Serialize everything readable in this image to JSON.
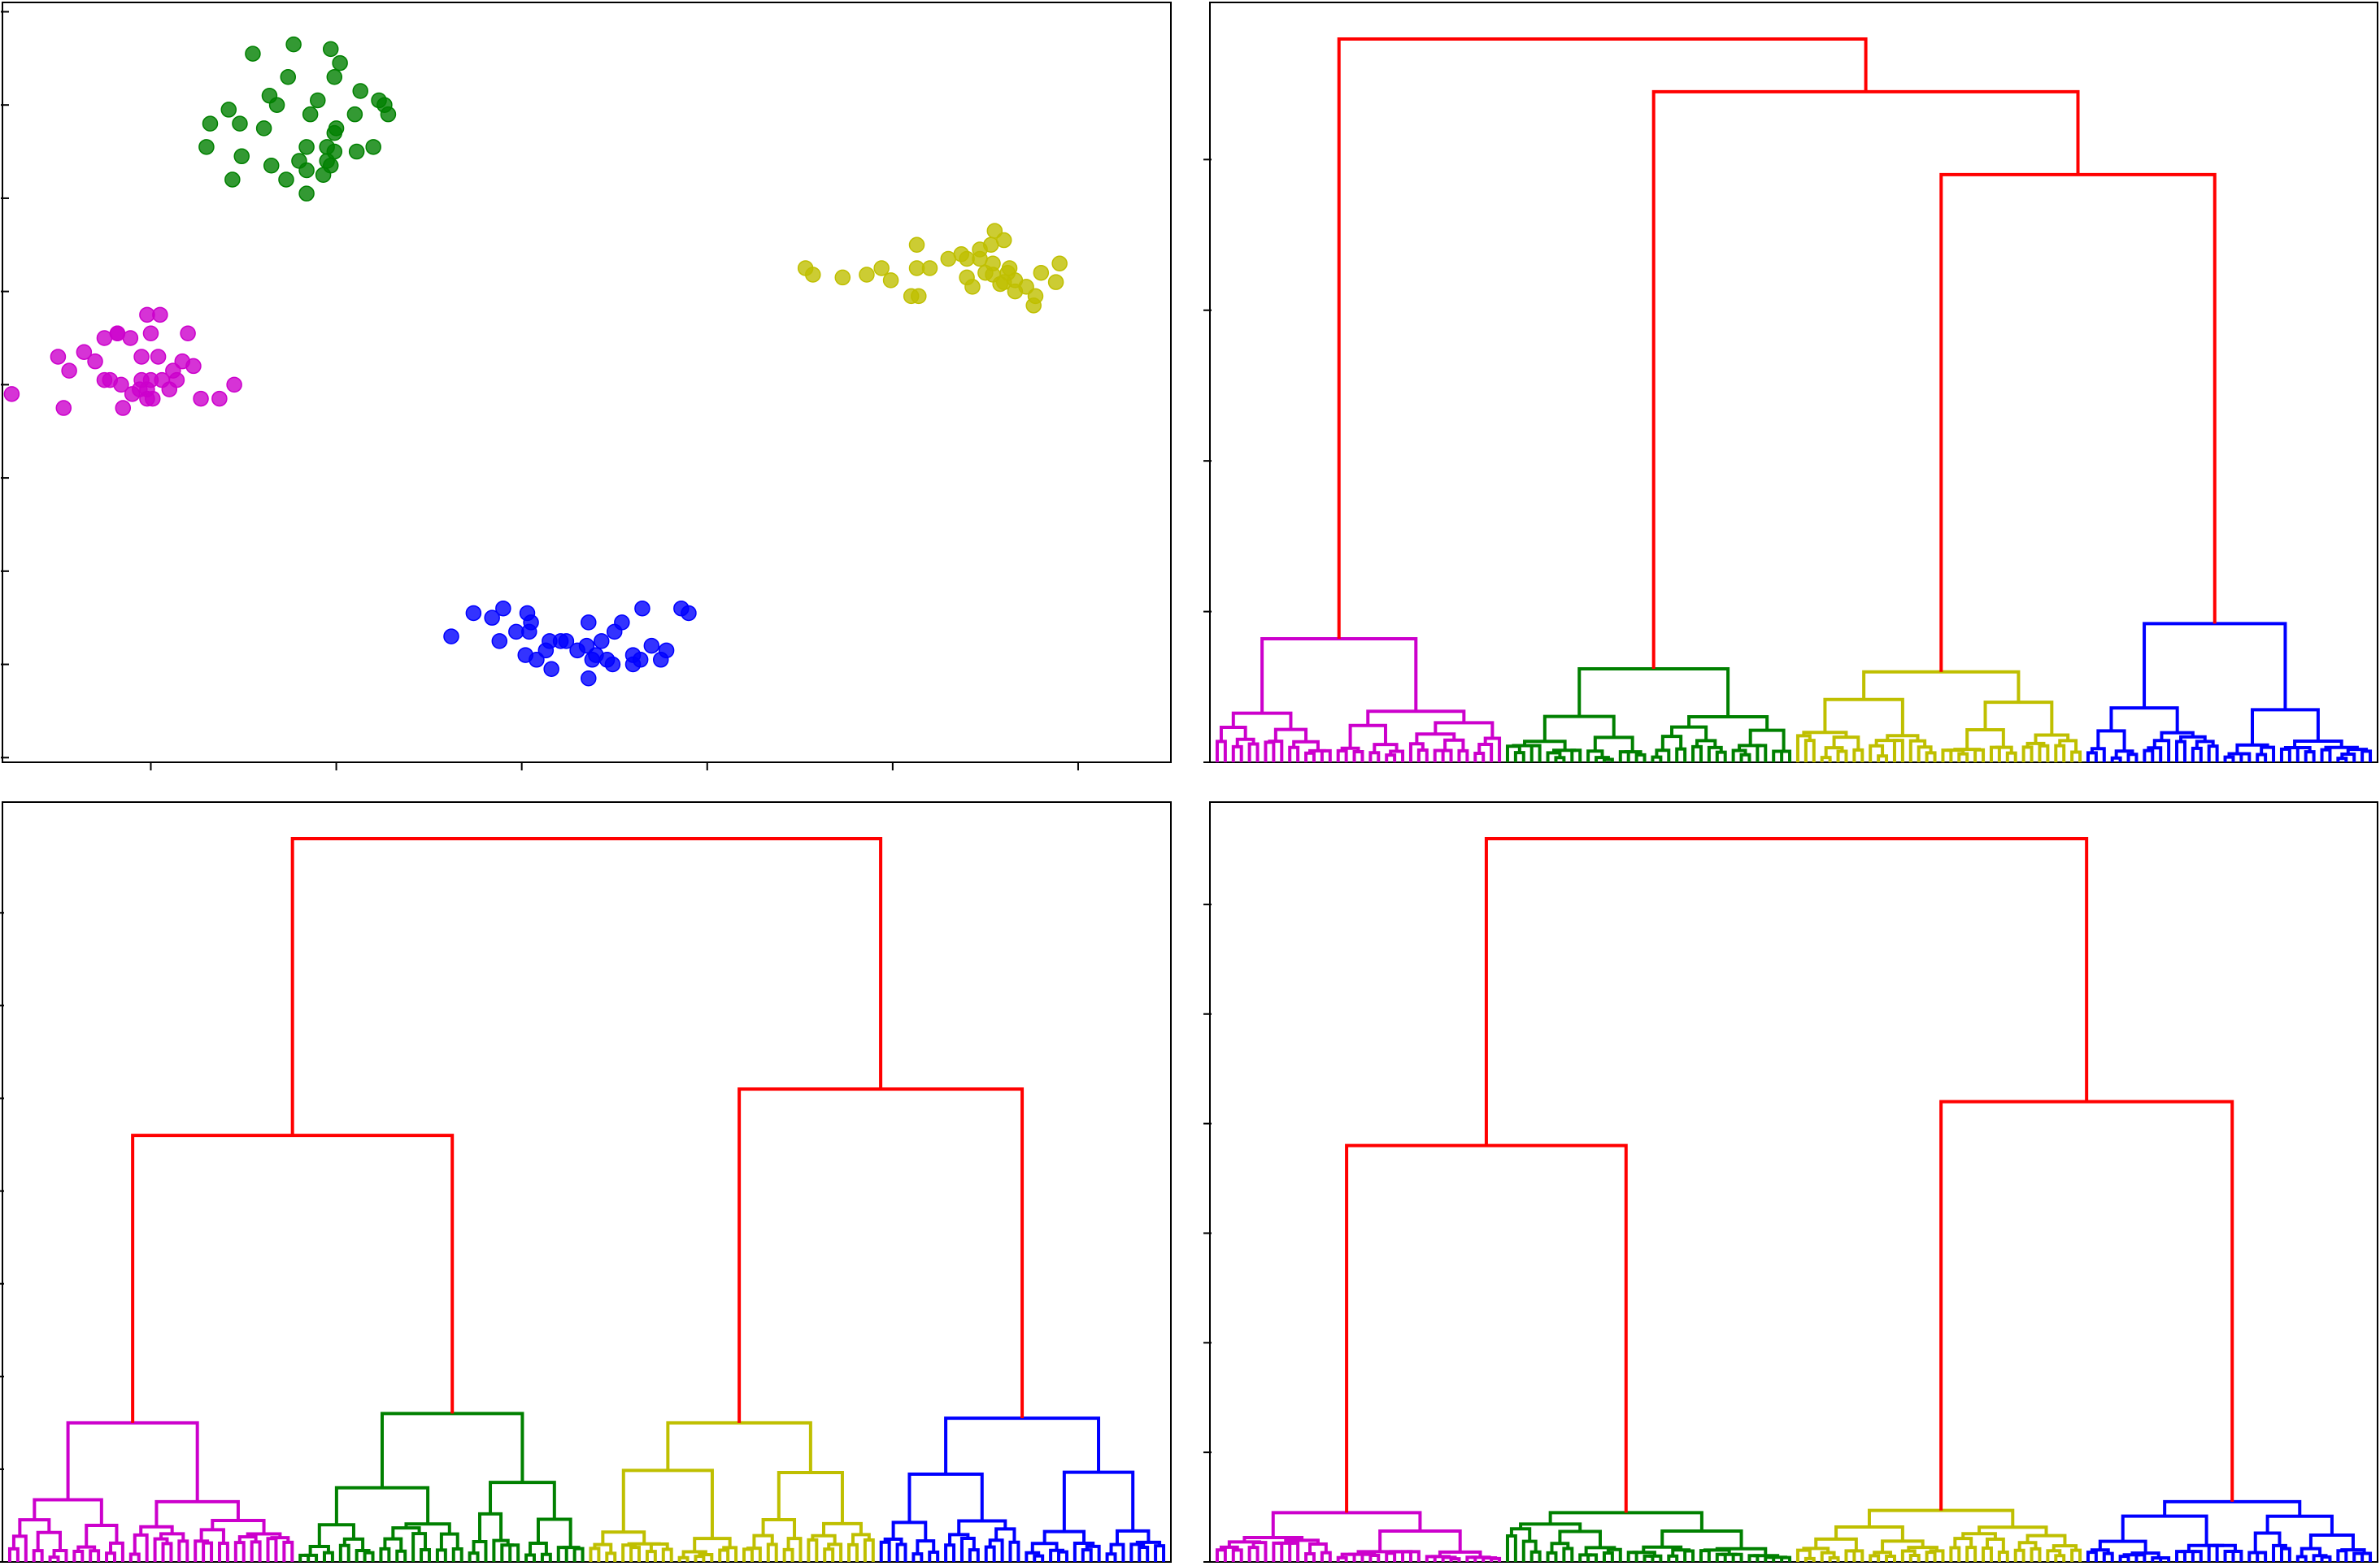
{
  "figure": {
    "colors": {
      "magenta": "#cc00cc",
      "green": "#008000",
      "yellow": "#bfbf00",
      "blue": "#0000ff",
      "top_links": "#ff0000",
      "frame": "#000000"
    }
  },
  "chart_data": [
    {
      "id": "scatter",
      "type": "scatter",
      "title": "",
      "xlabel": "",
      "ylabel": "",
      "xlim": [
        -0.8,
        5.5
      ],
      "ylim": [
        -0.05,
        8.1
      ],
      "xticks": [
        0,
        1,
        2,
        3,
        4,
        5
      ],
      "yticks": [
        0,
        1,
        2,
        3,
        4,
        5,
        6,
        7,
        8
      ],
      "grid": false,
      "legend": "none",
      "series": [
        {
          "color_key": "green",
          "points": [
            [
              0.55,
              7.55
            ],
            [
              0.77,
              7.65
            ],
            [
              0.97,
              7.6
            ],
            [
              1.02,
              7.45
            ],
            [
              0.99,
              7.3
            ],
            [
              0.74,
              7.3
            ],
            [
              0.9,
              7.05
            ],
            [
              0.64,
              7.1
            ],
            [
              0.86,
              6.9
            ],
            [
              1.13,
              7.15
            ],
            [
              1.23,
              7.05
            ],
            [
              1.26,
              7.0
            ],
            [
              1.28,
              6.9
            ],
            [
              0.48,
              6.8
            ],
            [
              0.42,
              6.95
            ],
            [
              0.95,
              6.55
            ],
            [
              0.99,
              6.5
            ],
            [
              0.65,
              6.35
            ],
            [
              0.49,
              6.45
            ],
            [
              0.97,
              6.35
            ],
            [
              0.84,
              6.3
            ],
            [
              0.68,
              7.0
            ],
            [
              1.2,
              6.55
            ],
            [
              0.32,
              6.8
            ],
            [
              1.1,
              6.9
            ],
            [
              0.84,
              6.05
            ],
            [
              0.73,
              6.2
            ],
            [
              0.84,
              6.55
            ],
            [
              0.99,
              6.7
            ],
            [
              1.0,
              6.75
            ],
            [
              0.61,
              6.75
            ],
            [
              1.11,
              6.5
            ],
            [
              0.93,
              6.25
            ],
            [
              0.44,
              6.2
            ],
            [
              0.8,
              6.4
            ],
            [
              0.3,
              6.55
            ],
            [
              0.95,
              6.4
            ]
          ]
        },
        {
          "color_key": "yellow",
          "points": [
            [
              4.55,
              5.65
            ],
            [
              4.6,
              5.55
            ],
            [
              4.47,
              5.45
            ],
            [
              4.53,
              5.5
            ],
            [
              4.37,
              5.4
            ],
            [
              4.47,
              5.35
            ],
            [
              4.54,
              5.3
            ],
            [
              4.4,
              5.35
            ],
            [
              4.4,
              5.15
            ],
            [
              4.63,
              5.25
            ],
            [
              4.8,
              5.2
            ],
            [
              4.13,
              5.25
            ],
            [
              4.6,
              5.1
            ],
            [
              4.88,
              5.1
            ],
            [
              4.72,
              5.05
            ],
            [
              4.66,
              5.0
            ],
            [
              4.5,
              5.2
            ],
            [
              4.43,
              5.05
            ],
            [
              4.66,
              5.12
            ],
            [
              4.9,
              5.3
            ],
            [
              4.54,
              5.18
            ],
            [
              3.99,
              5.12
            ],
            [
              3.86,
              5.18
            ],
            [
              4.1,
              4.95
            ],
            [
              4.14,
              4.95
            ],
            [
              3.94,
              5.25
            ],
            [
              4.2,
              5.25
            ],
            [
              4.3,
              5.35
            ],
            [
              4.58,
              5.08
            ],
            [
              3.73,
              5.15
            ],
            [
              3.57,
              5.18
            ],
            [
              3.53,
              5.25
            ],
            [
              4.76,
              4.85
            ],
            [
              4.77,
              4.95
            ],
            [
              4.62,
              5.2
            ],
            [
              4.13,
              5.5
            ]
          ]
        },
        {
          "color_key": "magenta",
          "points": [
            [
              0.45,
              4.0
            ],
            [
              0.23,
              4.2
            ],
            [
              0.04,
              4.3
            ],
            [
              0.37,
              3.85
            ],
            [
              0.27,
              3.85
            ],
            [
              0.17,
              4.25
            ],
            [
              0.0,
              4.55
            ],
            [
              0.2,
              4.55
            ],
            [
              0.06,
              4.05
            ],
            [
              0.1,
              3.95
            ],
            [
              0.14,
              4.05
            ],
            [
              0.05,
              4.75
            ],
            [
              -0.02,
              4.75
            ],
            [
              -0.25,
              4.5
            ],
            [
              -0.36,
              4.35
            ],
            [
              -0.25,
              4.05
            ],
            [
              -0.1,
              3.9
            ],
            [
              -0.02,
              3.85
            ],
            [
              -0.18,
              4.55
            ],
            [
              -0.05,
              4.3
            ],
            [
              -0.18,
              4.55
            ],
            [
              -0.11,
              4.5
            ],
            [
              0.12,
              4.15
            ],
            [
              -0.47,
              3.75
            ],
            [
              -0.15,
              3.75
            ],
            [
              -0.06,
              3.95
            ],
            [
              -0.22,
              4.05
            ],
            [
              0.0,
              4.05
            ],
            [
              -0.44,
              4.15
            ],
            [
              -0.3,
              4.25
            ],
            [
              -0.5,
              4.3
            ],
            [
              -0.16,
              4.0
            ],
            [
              -0.02,
              3.95
            ],
            [
              -0.05,
              4.05
            ],
            [
              -0.75,
              3.9
            ],
            [
              0.01,
              3.85
            ]
          ]
        },
        {
          "color_key": "blue",
          "points": [
            [
              1.62,
              1.3
            ],
            [
              1.9,
              1.6
            ],
            [
              1.97,
              1.35
            ],
            [
              2.03,
              1.55
            ],
            [
              2.05,
              1.45
            ],
            [
              2.15,
              1.25
            ],
            [
              2.24,
              1.25
            ],
            [
              2.43,
              1.25
            ],
            [
              2.3,
              1.15
            ],
            [
              2.38,
              1.05
            ],
            [
              2.6,
              1.1
            ],
            [
              2.78,
              1.15
            ],
            [
              2.6,
              1.0
            ],
            [
              2.35,
              1.2
            ],
            [
              2.46,
              1.05
            ],
            [
              2.54,
              1.45
            ],
            [
              2.7,
              1.2
            ],
            [
              2.86,
              1.6
            ],
            [
              2.5,
              1.35
            ],
            [
              1.74,
              1.55
            ],
            [
              1.88,
              1.25
            ],
            [
              1.84,
              1.5
            ],
            [
              2.04,
              1.35
            ],
            [
              2.02,
              1.1
            ],
            [
              2.21,
              1.25
            ],
            [
              2.13,
              1.15
            ],
            [
              2.4,
              1.1
            ],
            [
              2.49,
              1.0
            ],
            [
              2.65,
              1.6
            ],
            [
              2.36,
              1.45
            ],
            [
              2.36,
              0.85
            ],
            [
              2.16,
              0.95
            ],
            [
              2.08,
              1.05
            ],
            [
              2.64,
              1.05
            ],
            [
              2.75,
              1.05
            ],
            [
              2.9,
              1.55
            ]
          ]
        }
      ]
    },
    {
      "id": "dendrogram-top-right",
      "type": "dendrogram",
      "title": "",
      "xlabel": "",
      "ylabel": "",
      "ylim": [
        0,
        4.8
      ],
      "yticks": [
        0,
        1,
        2,
        3,
        4
      ],
      "grid": false,
      "legend": "none",
      "link_color_key": "top_links",
      "order": [
        "magenta",
        "green",
        "yellow",
        "blue"
      ],
      "cluster_heights": {
        "magenta": 0.82,
        "green": 0.62,
        "yellow": 0.6,
        "blue": 0.92
      },
      "merges": {
        "left_pair": 3.9,
        "middle": 4.45,
        "root": 4.8
      },
      "x_extent": [
        0,
        1
      ]
    },
    {
      "id": "dendrogram-bottom-left",
      "type": "dendrogram",
      "title": "",
      "xlabel": "",
      "ylabel": "",
      "ylim": [
        0,
        7.8
      ],
      "yticks": [
        0,
        1,
        2,
        3,
        4,
        5,
        6,
        7
      ],
      "grid": false,
      "legend": "none",
      "link_color_key": "top_links",
      "order": [
        "magenta",
        "green",
        "yellow",
        "blue"
      ],
      "cluster_heights": {
        "magenta": 1.5,
        "green": 1.6,
        "yellow": 1.5,
        "blue": 1.55
      },
      "merges": {
        "left_pair": 4.6,
        "right_pair": 5.1,
        "root": 7.8
      },
      "x_extent": [
        0,
        1
      ]
    },
    {
      "id": "dendrogram-bottom-right",
      "type": "dendrogram",
      "title": "",
      "xlabel": "",
      "ylabel": "",
      "ylim": [
        0,
        6.6
      ],
      "yticks": [
        0,
        1,
        2,
        3,
        4,
        5,
        6
      ],
      "grid": false,
      "legend": "none",
      "link_color_key": "top_links",
      "order": [
        "magenta",
        "green",
        "yellow",
        "blue"
      ],
      "cluster_heights": {
        "magenta": 0.45,
        "green": 0.45,
        "yellow": 0.47,
        "blue": 0.55
      },
      "merges": {
        "left_pair": 3.8,
        "right_pair": 4.2,
        "root": 6.6
      },
      "x_extent": [
        0,
        1
      ]
    }
  ]
}
